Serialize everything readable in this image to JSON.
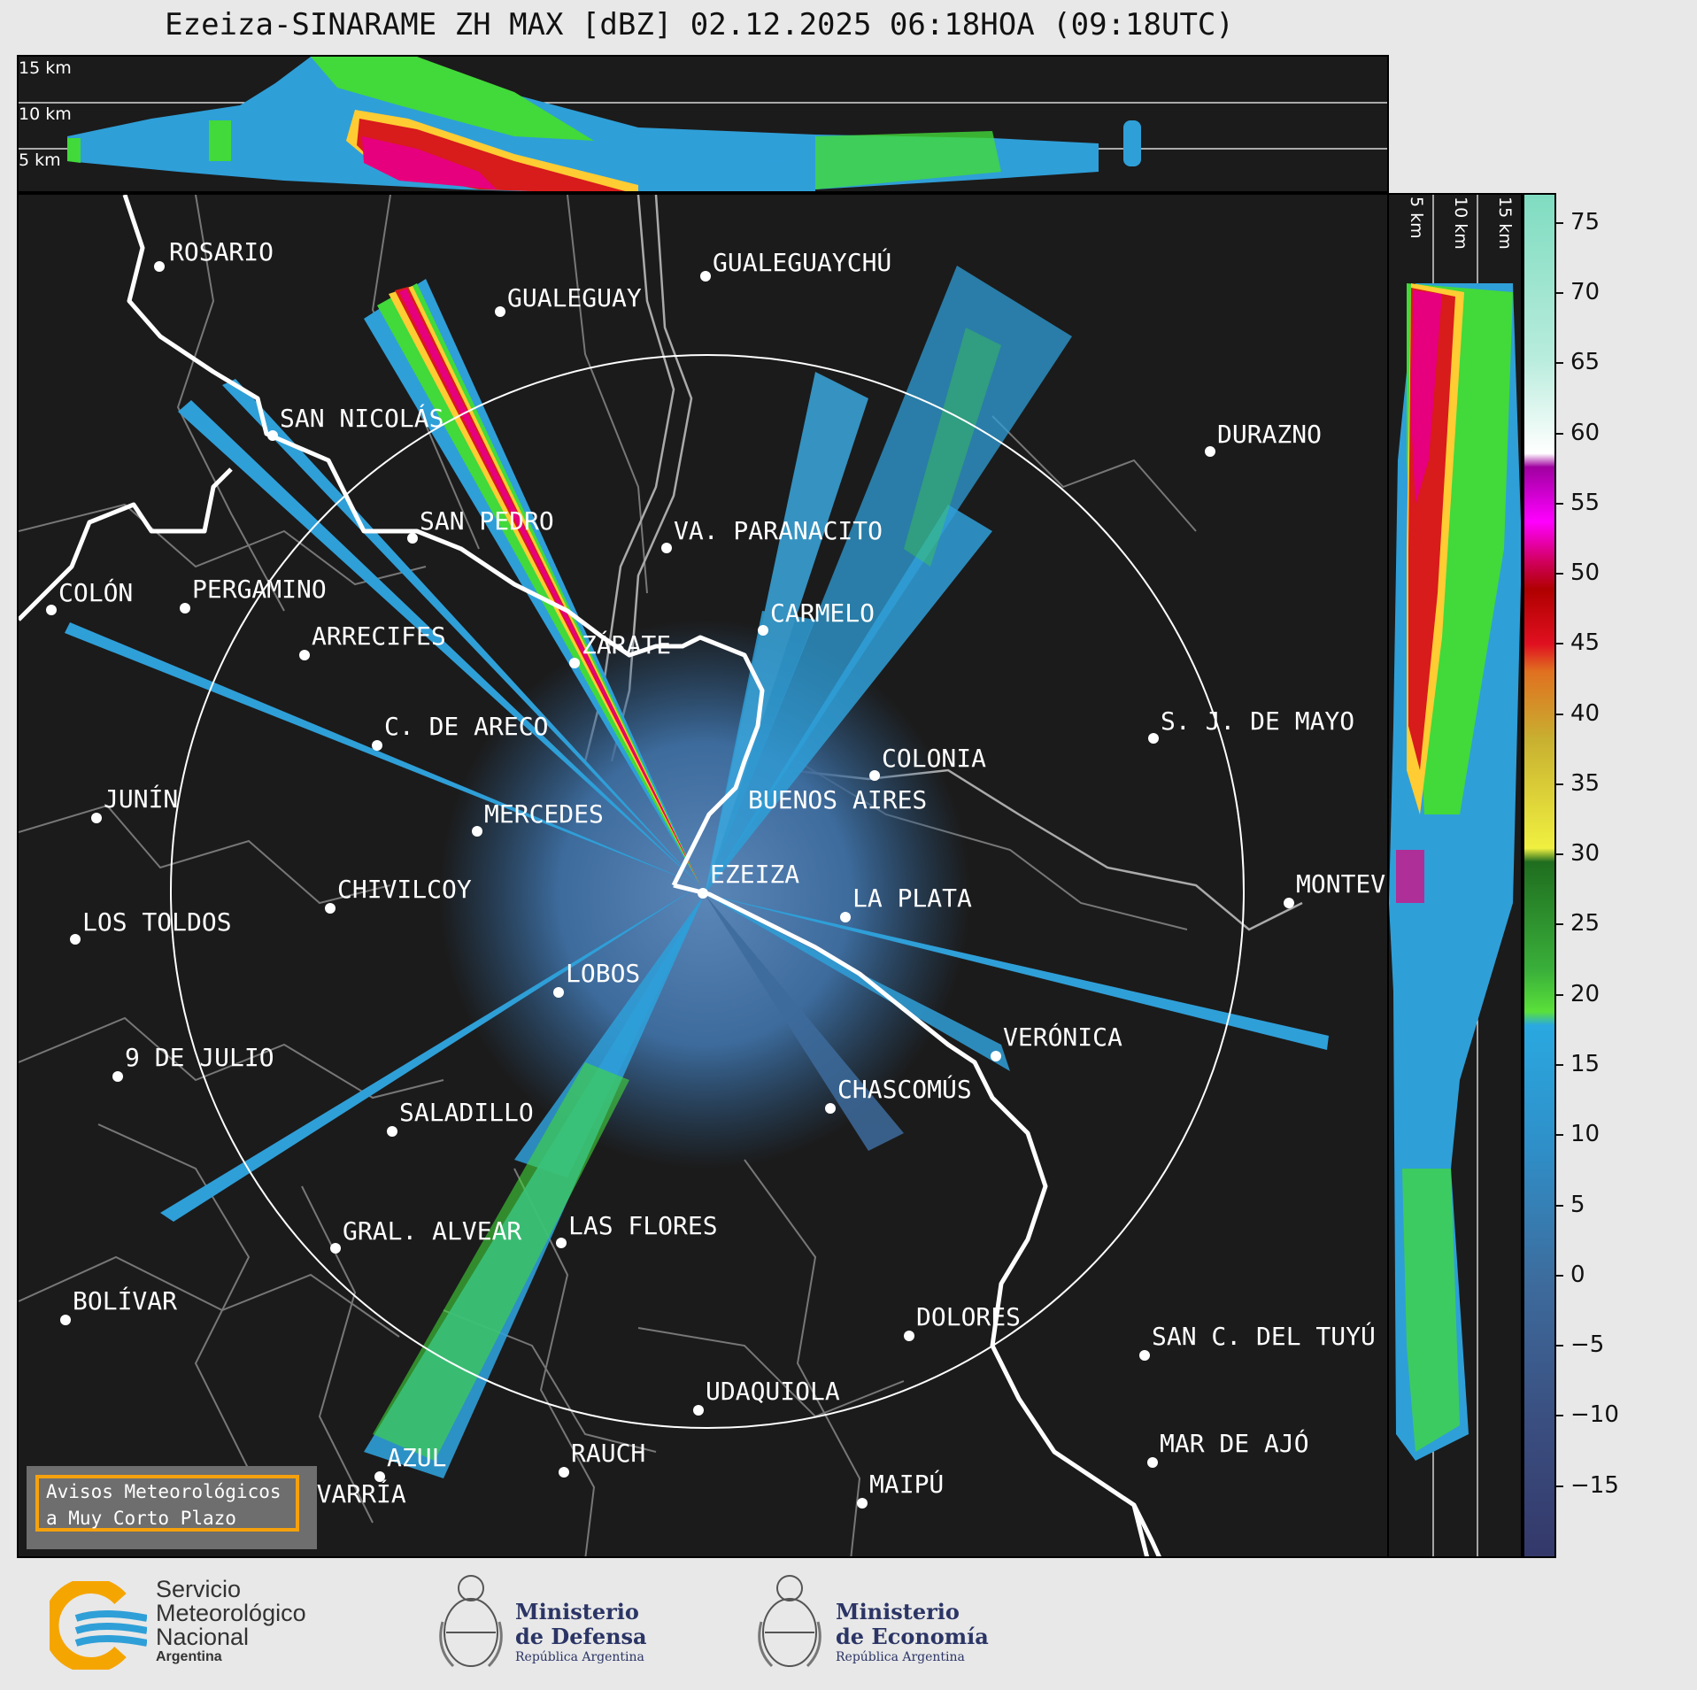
{
  "title": "Ezeiza-SINARAME ZH MAX [dBZ] 02.12.2025 06:18HOA (09:18UTC)",
  "height_labels_top": [
    "15 km",
    "10 km",
    "5 km"
  ],
  "height_labels_side": [
    "5 km",
    "10 km",
    "15 km"
  ],
  "colorbar": {
    "unit": "dBZ",
    "ticks": [
      "75",
      "70",
      "65",
      "60",
      "55",
      "50",
      "45",
      "40",
      "35",
      "30",
      "25",
      "20",
      "15",
      "10",
      "5",
      "0",
      "−5",
      "−10",
      "−15"
    ],
    "range": [
      -20,
      77
    ]
  },
  "cities": [
    {
      "name": "ROSARIO"
    },
    {
      "name": "GUALEGUAYCHÚ"
    },
    {
      "name": "GUALEGUAY"
    },
    {
      "name": "SAN NICOLÁS"
    },
    {
      "name": "DURAZNO"
    },
    {
      "name": "SAN PEDRO"
    },
    {
      "name": "VA. PARANACITO"
    },
    {
      "name": "COLÓN"
    },
    {
      "name": "PERGAMINO"
    },
    {
      "name": "CARMELO"
    },
    {
      "name": "ARRECIFES"
    },
    {
      "name": "ZÁRATE"
    },
    {
      "name": "S. J. DE MAYO"
    },
    {
      "name": "C. DE ARECO"
    },
    {
      "name": "COLONIA"
    },
    {
      "name": "JUNÍN"
    },
    {
      "name": "MERCEDES"
    },
    {
      "name": "BUENOS AIRES"
    },
    {
      "name": "MONTEVIDEO"
    },
    {
      "name": "EZEIZA"
    },
    {
      "name": "CHIVILCOY"
    },
    {
      "name": "LA PLATA"
    },
    {
      "name": "LOS TOLDOS"
    },
    {
      "name": "LOBOS"
    },
    {
      "name": "VERÓNICA"
    },
    {
      "name": "9 DE JULIO"
    },
    {
      "name": "CHASCOMÚS"
    },
    {
      "name": "SALADILLO"
    },
    {
      "name": "GRAL. ALVEAR"
    },
    {
      "name": "LAS FLORES"
    },
    {
      "name": "BOLÍVAR"
    },
    {
      "name": "DOLORES"
    },
    {
      "name": "SAN C. DEL TUYÚ"
    },
    {
      "name": "UDAQUIOLA"
    },
    {
      "name": "MAR DE AJÓ"
    },
    {
      "name": "AZUL"
    },
    {
      "name": "RAUCH"
    },
    {
      "name": "OLAVARRÍA"
    },
    {
      "name": "MAIPÚ"
    }
  ],
  "avisos": {
    "line1": "Avisos Meteorológicos",
    "line2": "a Muy Corto Plazo"
  },
  "logos": {
    "smn": {
      "l1": "Servicio",
      "l2": "Meteorológico",
      "l3": "Nacional",
      "l4": "Argentina"
    },
    "defensa": {
      "l1": "Ministerio",
      "l2": "de Defensa",
      "l3": "República Argentina"
    },
    "economia": {
      "l1": "Ministerio",
      "l2": "de Economía",
      "l3": "República Argentina"
    }
  },
  "colors": {
    "background": "#1b1b1b",
    "range_ring": "#ffffff",
    "coast": "#ffffff",
    "borders": "#777777",
    "avisos_border": "#f5a10d"
  }
}
